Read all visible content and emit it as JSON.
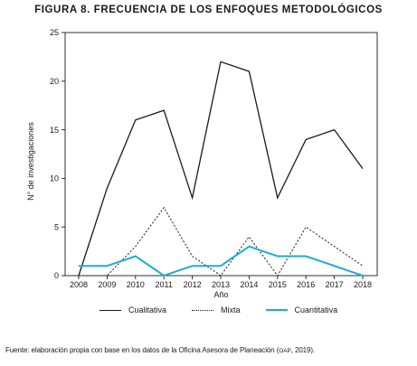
{
  "figure": {
    "title": "FIGURA 8. FRECUENCIA DE LOS ENFOQUES METODOLÓGICOS",
    "source_prefix": "Fuente: elaboración propia con base en los datos de la Oficina Asesora de Planeación (",
    "source_abbr": "OAP",
    "source_suffix": ", 2019)."
  },
  "chart_data": {
    "type": "line",
    "title": "FIGURA 8. FRECUENCIA DE LOS ENFOQUES METODOLÓGICOS",
    "xlabel": "Año",
    "ylabel": "N° de investigaciones",
    "x": [
      "2008",
      "2009",
      "2010",
      "2011",
      "2012",
      "2013",
      "2014",
      "2015",
      "2016",
      "2017",
      "2018"
    ],
    "ylim": [
      0,
      25
    ],
    "yticks": [
      0,
      5,
      10,
      15,
      20,
      25
    ],
    "grid": false,
    "legend_position": "bottom",
    "series": [
      {
        "name": "Cualitativa",
        "values": [
          0,
          9,
          16,
          17,
          8,
          22,
          21,
          8,
          14,
          15,
          11
        ],
        "color": "#1a1a1a",
        "style": "solid"
      },
      {
        "name": "Mixta",
        "values": [
          0,
          0,
          3,
          7,
          2,
          0,
          4,
          0,
          5,
          3,
          1
        ],
        "color": "#1a1a1a",
        "style": "dotted"
      },
      {
        "name": "Cuantitativa",
        "values": [
          1,
          1,
          2,
          0,
          1,
          1,
          3,
          2,
          2,
          1,
          0
        ],
        "color": "#1aaed3",
        "style": "solid"
      }
    ]
  }
}
